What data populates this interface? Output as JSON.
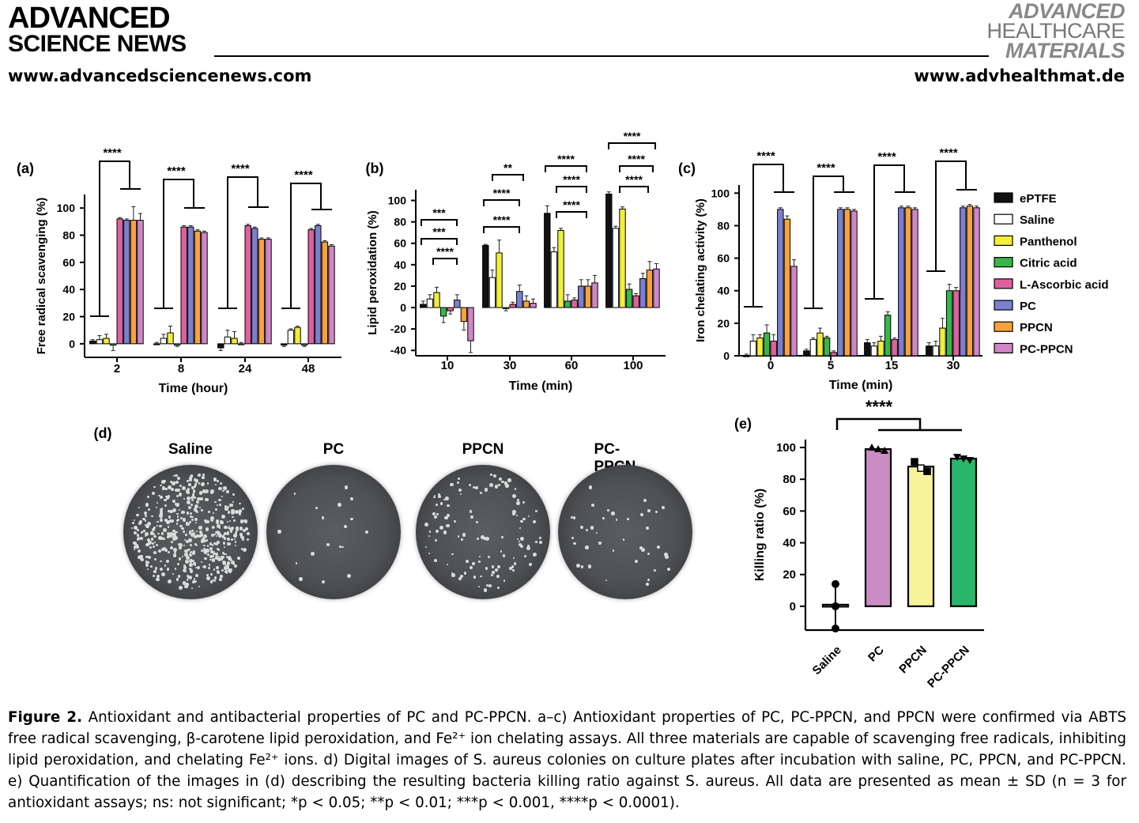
{
  "header": {
    "brand_left_line1": "ADVANCED",
    "brand_left_line2": "SCIENCE NEWS",
    "url_left": "www.advancedsciencenews.com",
    "brand_right_line1": "ADVANCED",
    "brand_right_line2": "HEALTHCARE",
    "brand_right_line3": "MATERIALS",
    "url_right": "www.advhealthmat.de"
  },
  "legend": {
    "items": [
      "ePTFE",
      "Saline",
      "Panthenol",
      "Citric acid",
      "L-Ascorbic acid",
      "PC",
      "PPCN",
      "PC-PPCN"
    ],
    "colors": [
      "#111111",
      "#ffffff",
      "#f2ee3a",
      "#39b54a",
      "#e0609f",
      "#7a7fd0",
      "#f7a23b",
      "#cf86c7"
    ]
  },
  "panel_d": {
    "label": "(d)",
    "plates": [
      "Saline",
      "PC",
      "PPCN",
      "PC-PPCN"
    ]
  },
  "chart_data": [
    {
      "panel": "(a)",
      "type": "bar",
      "ylabel": "Free radical scavenging (%)",
      "xlabel": "Time (hour)",
      "ylim": [
        -10,
        110
      ],
      "yticks": [
        0,
        20,
        40,
        60,
        80,
        100
      ],
      "categories": [
        "2",
        "8",
        "24",
        "48"
      ],
      "series": [
        {
          "name": "ePTFE",
          "values": [
            2,
            0,
            -3,
            -1
          ],
          "err": [
            1,
            1,
            2,
            1
          ]
        },
        {
          "name": "Saline",
          "values": [
            3,
            4,
            5,
            10
          ],
          "err": [
            3,
            3,
            5,
            1
          ]
        },
        {
          "name": "Panthenol",
          "values": [
            4,
            8,
            4,
            12
          ],
          "err": [
            3,
            5,
            5,
            1
          ]
        },
        {
          "name": "Citric acid",
          "values": [
            -1,
            -1,
            0,
            -1
          ],
          "err": [
            4,
            1,
            1,
            1
          ]
        },
        {
          "name": "L-Ascorbic acid",
          "values": [
            92,
            86,
            87,
            84
          ],
          "err": [
            1,
            1,
            1,
            1
          ]
        },
        {
          "name": "PC",
          "values": [
            91,
            86,
            85,
            87
          ],
          "err": [
            1,
            1,
            1,
            1
          ]
        },
        {
          "name": "PPCN",
          "values": [
            91,
            83,
            77,
            75
          ],
          "err": [
            10,
            1,
            1,
            1
          ]
        },
        {
          "name": "PC-PPCN",
          "values": [
            91,
            82,
            77,
            72
          ],
          "err": [
            5,
            1,
            1,
            1
          ]
        }
      ],
      "annotations": [
        "****",
        "****",
        "****",
        "****"
      ]
    },
    {
      "panel": "(b)",
      "type": "bar",
      "ylabel": "Lipid peroxidation (%)",
      "xlabel": "Time (min)",
      "ylim": [
        -45,
        110
      ],
      "yticks": [
        -40,
        -20,
        0,
        20,
        40,
        60,
        80,
        100
      ],
      "categories": [
        "10",
        "30",
        "60",
        "100"
      ],
      "series": [
        {
          "name": "ePTFE",
          "values": [
            3,
            58,
            88,
            106
          ],
          "err": [
            3,
            1,
            7,
            2
          ]
        },
        {
          "name": "Saline",
          "values": [
            8,
            28,
            52,
            74
          ],
          "err": [
            4,
            7,
            4,
            2
          ]
        },
        {
          "name": "Panthenol",
          "values": [
            14,
            51,
            72,
            92
          ],
          "err": [
            5,
            12,
            2,
            2
          ]
        },
        {
          "name": "Citric acid",
          "values": [
            -8,
            -1,
            6,
            17
          ],
          "err": [
            6,
            2,
            6,
            5
          ]
        },
        {
          "name": "L-Ascorbic acid",
          "values": [
            -3,
            3,
            7,
            11
          ],
          "err": [
            3,
            2,
            2,
            2
          ]
        },
        {
          "name": "PC",
          "values": [
            7,
            15,
            20,
            27
          ],
          "err": [
            5,
            6,
            6,
            5
          ]
        },
        {
          "name": "PPCN",
          "values": [
            -13,
            6,
            20,
            35
          ],
          "err": [
            8,
            5,
            6,
            8
          ]
        },
        {
          "name": "PC-PPCN",
          "values": [
            -31,
            4,
            23,
            36
          ],
          "err": [
            11,
            4,
            7,
            5
          ]
        }
      ],
      "annotations": [
        "***",
        "***",
        "****",
        "**",
        "****",
        "****",
        "****",
        "****",
        "****",
        "****",
        "****",
        "****"
      ]
    },
    {
      "panel": "(c)",
      "type": "bar",
      "ylabel": "Iron chelating activity (%)",
      "xlabel": "Time (min)",
      "ylim": [
        0,
        105
      ],
      "yticks": [
        0,
        20,
        40,
        60,
        80,
        100
      ],
      "categories": [
        "0",
        "5",
        "15",
        "30"
      ],
      "series": [
        {
          "name": "ePTFE",
          "values": [
            0,
            3,
            8,
            6
          ],
          "err": [
            1,
            1,
            2,
            2
          ]
        },
        {
          "name": "Saline",
          "values": [
            9,
            10,
            6,
            6
          ],
          "err": [
            4,
            1,
            2,
            3
          ]
        },
        {
          "name": "Panthenol",
          "values": [
            11,
            14,
            9,
            17
          ],
          "err": [
            2,
            3,
            3,
            6
          ]
        },
        {
          "name": "Citric acid",
          "values": [
            14,
            11,
            25,
            40
          ],
          "err": [
            5,
            1,
            2,
            4
          ]
        },
        {
          "name": "L-Ascorbic acid",
          "values": [
            9,
            2,
            10,
            40
          ],
          "err": [
            4,
            1,
            1,
            2
          ]
        },
        {
          "name": "PC",
          "values": [
            90,
            90,
            91,
            91
          ],
          "err": [
            1,
            1,
            1,
            1
          ]
        },
        {
          "name": "PPCN",
          "values": [
            84,
            90,
            91,
            92
          ],
          "err": [
            2,
            1,
            1,
            1
          ]
        },
        {
          "name": "PC-PPCN",
          "values": [
            55,
            89,
            90,
            91
          ],
          "err": [
            4,
            1,
            1,
            1
          ]
        }
      ],
      "annotations": [
        "****",
        "****",
        "****",
        "****"
      ]
    },
    {
      "panel": "(e)",
      "type": "bar",
      "ylabel": "Killing ratio (%)",
      "ylim": [
        -15,
        105
      ],
      "yticks": [
        0,
        20,
        40,
        60,
        80,
        100
      ],
      "categories": [
        "Saline",
        "PC",
        "PPCN",
        "PC-PPCN"
      ],
      "values": [
        1,
        99,
        88,
        93
      ],
      "colors": [
        "#ffffff",
        "#c98cc4",
        "#f7f39a",
        "#2bb56a"
      ],
      "points": [
        [
          14,
          0,
          -14
        ],
        [
          100,
          99,
          98
        ],
        [
          91,
          87,
          85
        ],
        [
          94,
          93,
          92
        ]
      ],
      "annotations": [
        "****"
      ]
    }
  ],
  "caption": {
    "label": "Figure 2.",
    "text": "Antioxidant and antibacterial properties of PC and PC-PPCN. a–c) Antioxidant properties of PC, PC-PPCN, and PPCN were confirmed via ABTS free radical scavenging, β-carotene lipid peroxidation, and Fe²⁺ ion chelating assays. All three materials are capable of scavenging free radicals, inhibiting lipid peroxidation, and chelating Fe²⁺ ions. d) Digital images of S. aureus colonies on culture plates after incubation with saline, PC, PPCN, and PC-PPCN. e) Quantification of the images in (d) describing the resulting bacteria killing ratio against S. aureus. All data are presented as mean ± SD (n = 3 for antioxidant assays; ns: not significant; *p < 0.05; **p < 0.01; ***p < 0.001, ****p < 0.0001)."
  }
}
